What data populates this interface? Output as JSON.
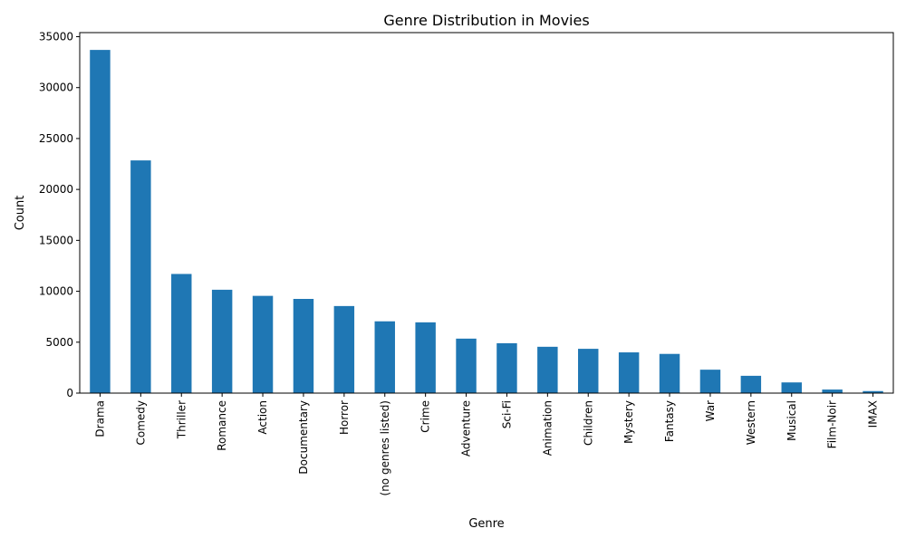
{
  "chart_data": {
    "type": "bar",
    "title": "Genre Distribution in Movies",
    "xlabel": "Genre",
    "ylabel": "Count",
    "categories": [
      "Drama",
      "Comedy",
      "Thriller",
      "Romance",
      "Action",
      "Documentary",
      "Horror",
      "(no genres listed)",
      "Crime",
      "Adventure",
      "Sci-Fi",
      "Animation",
      "Children",
      "Mystery",
      "Fantasy",
      "War",
      "Western",
      "Musical",
      "Film-Noir",
      "IMAX"
    ],
    "values": [
      33700,
      22850,
      11700,
      10150,
      9550,
      9250,
      8550,
      7050,
      6950,
      5350,
      4900,
      4550,
      4350,
      4000,
      3850,
      2300,
      1700,
      1050,
      350,
      200
    ],
    "ylim": [
      0,
      35400
    ],
    "yticks": [
      0,
      5000,
      10000,
      15000,
      20000,
      25000,
      30000,
      35000
    ],
    "grid": false,
    "legend": "none",
    "bar_color": "#1f77b4"
  }
}
